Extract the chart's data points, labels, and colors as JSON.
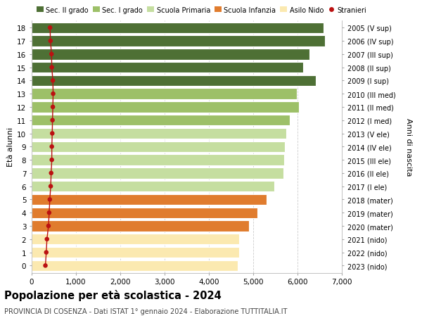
{
  "ages": [
    0,
    1,
    2,
    3,
    4,
    5,
    6,
    7,
    8,
    9,
    10,
    11,
    12,
    13,
    14,
    15,
    16,
    17,
    18
  ],
  "right_labels": [
    "2023 (nido)",
    "2022 (nido)",
    "2021 (nido)",
    "2020 (mater)",
    "2019 (mater)",
    "2018 (mater)",
    "2017 (I ele)",
    "2016 (II ele)",
    "2015 (III ele)",
    "2014 (IV ele)",
    "2013 (V ele)",
    "2012 (I med)",
    "2011 (II med)",
    "2010 (III med)",
    "2009 (I sup)",
    "2008 (II sup)",
    "2007 (III sup)",
    "2006 (IV sup)",
    "2005 (V sup)"
  ],
  "bar_values": [
    4650,
    4680,
    4680,
    4900,
    5100,
    5300,
    5480,
    5680,
    5700,
    5720,
    5740,
    5820,
    6030,
    5980,
    6420,
    6120,
    6270,
    6620,
    6580
  ],
  "stranieri_values": [
    310,
    330,
    345,
    380,
    395,
    410,
    430,
    440,
    455,
    455,
    465,
    470,
    478,
    485,
    478,
    455,
    448,
    425,
    415
  ],
  "bar_colors": [
    "#fbe9b0",
    "#fbe9b0",
    "#fbe9b0",
    "#e07c2e",
    "#e07c2e",
    "#e07c2e",
    "#c5dea0",
    "#c5dea0",
    "#c5dea0",
    "#c5dea0",
    "#c5dea0",
    "#9dc068",
    "#9dc068",
    "#9dc068",
    "#4e7035",
    "#4e7035",
    "#4e7035",
    "#4e7035",
    "#4e7035"
  ],
  "legend_labels": [
    "Sec. II grado",
    "Sec. I grado",
    "Scuola Primaria",
    "Scuola Infanzia",
    "Asilo Nido",
    "Stranieri"
  ],
  "legend_colors": [
    "#4e7035",
    "#9dc068",
    "#c5dea0",
    "#e07c2e",
    "#fbe9b0",
    "#bb1111"
  ],
  "title": "Popolazione per età scolastica - 2024",
  "subtitle": "PROVINCIA DI COSENZA - Dati ISTAT 1° gennaio 2024 - Elaborazione TUTTITALIA.IT",
  "ylabel_left": "Età alunni",
  "ylabel_right": "Anni di nascita",
  "xlim": [
    0,
    7000
  ],
  "xticks": [
    0,
    1000,
    2000,
    3000,
    4000,
    5000,
    6000,
    7000
  ],
  "xtick_labels": [
    "0",
    "1,000",
    "2,000",
    "3,000",
    "4,000",
    "5,000",
    "6,000",
    "7,000"
  ],
  "bar_height": 0.82,
  "figsize": [
    6.0,
    4.6
  ],
  "dpi": 100,
  "bg_color": "#ffffff",
  "grid_color": "#cccccc",
  "stranieri_color": "#bb1111"
}
